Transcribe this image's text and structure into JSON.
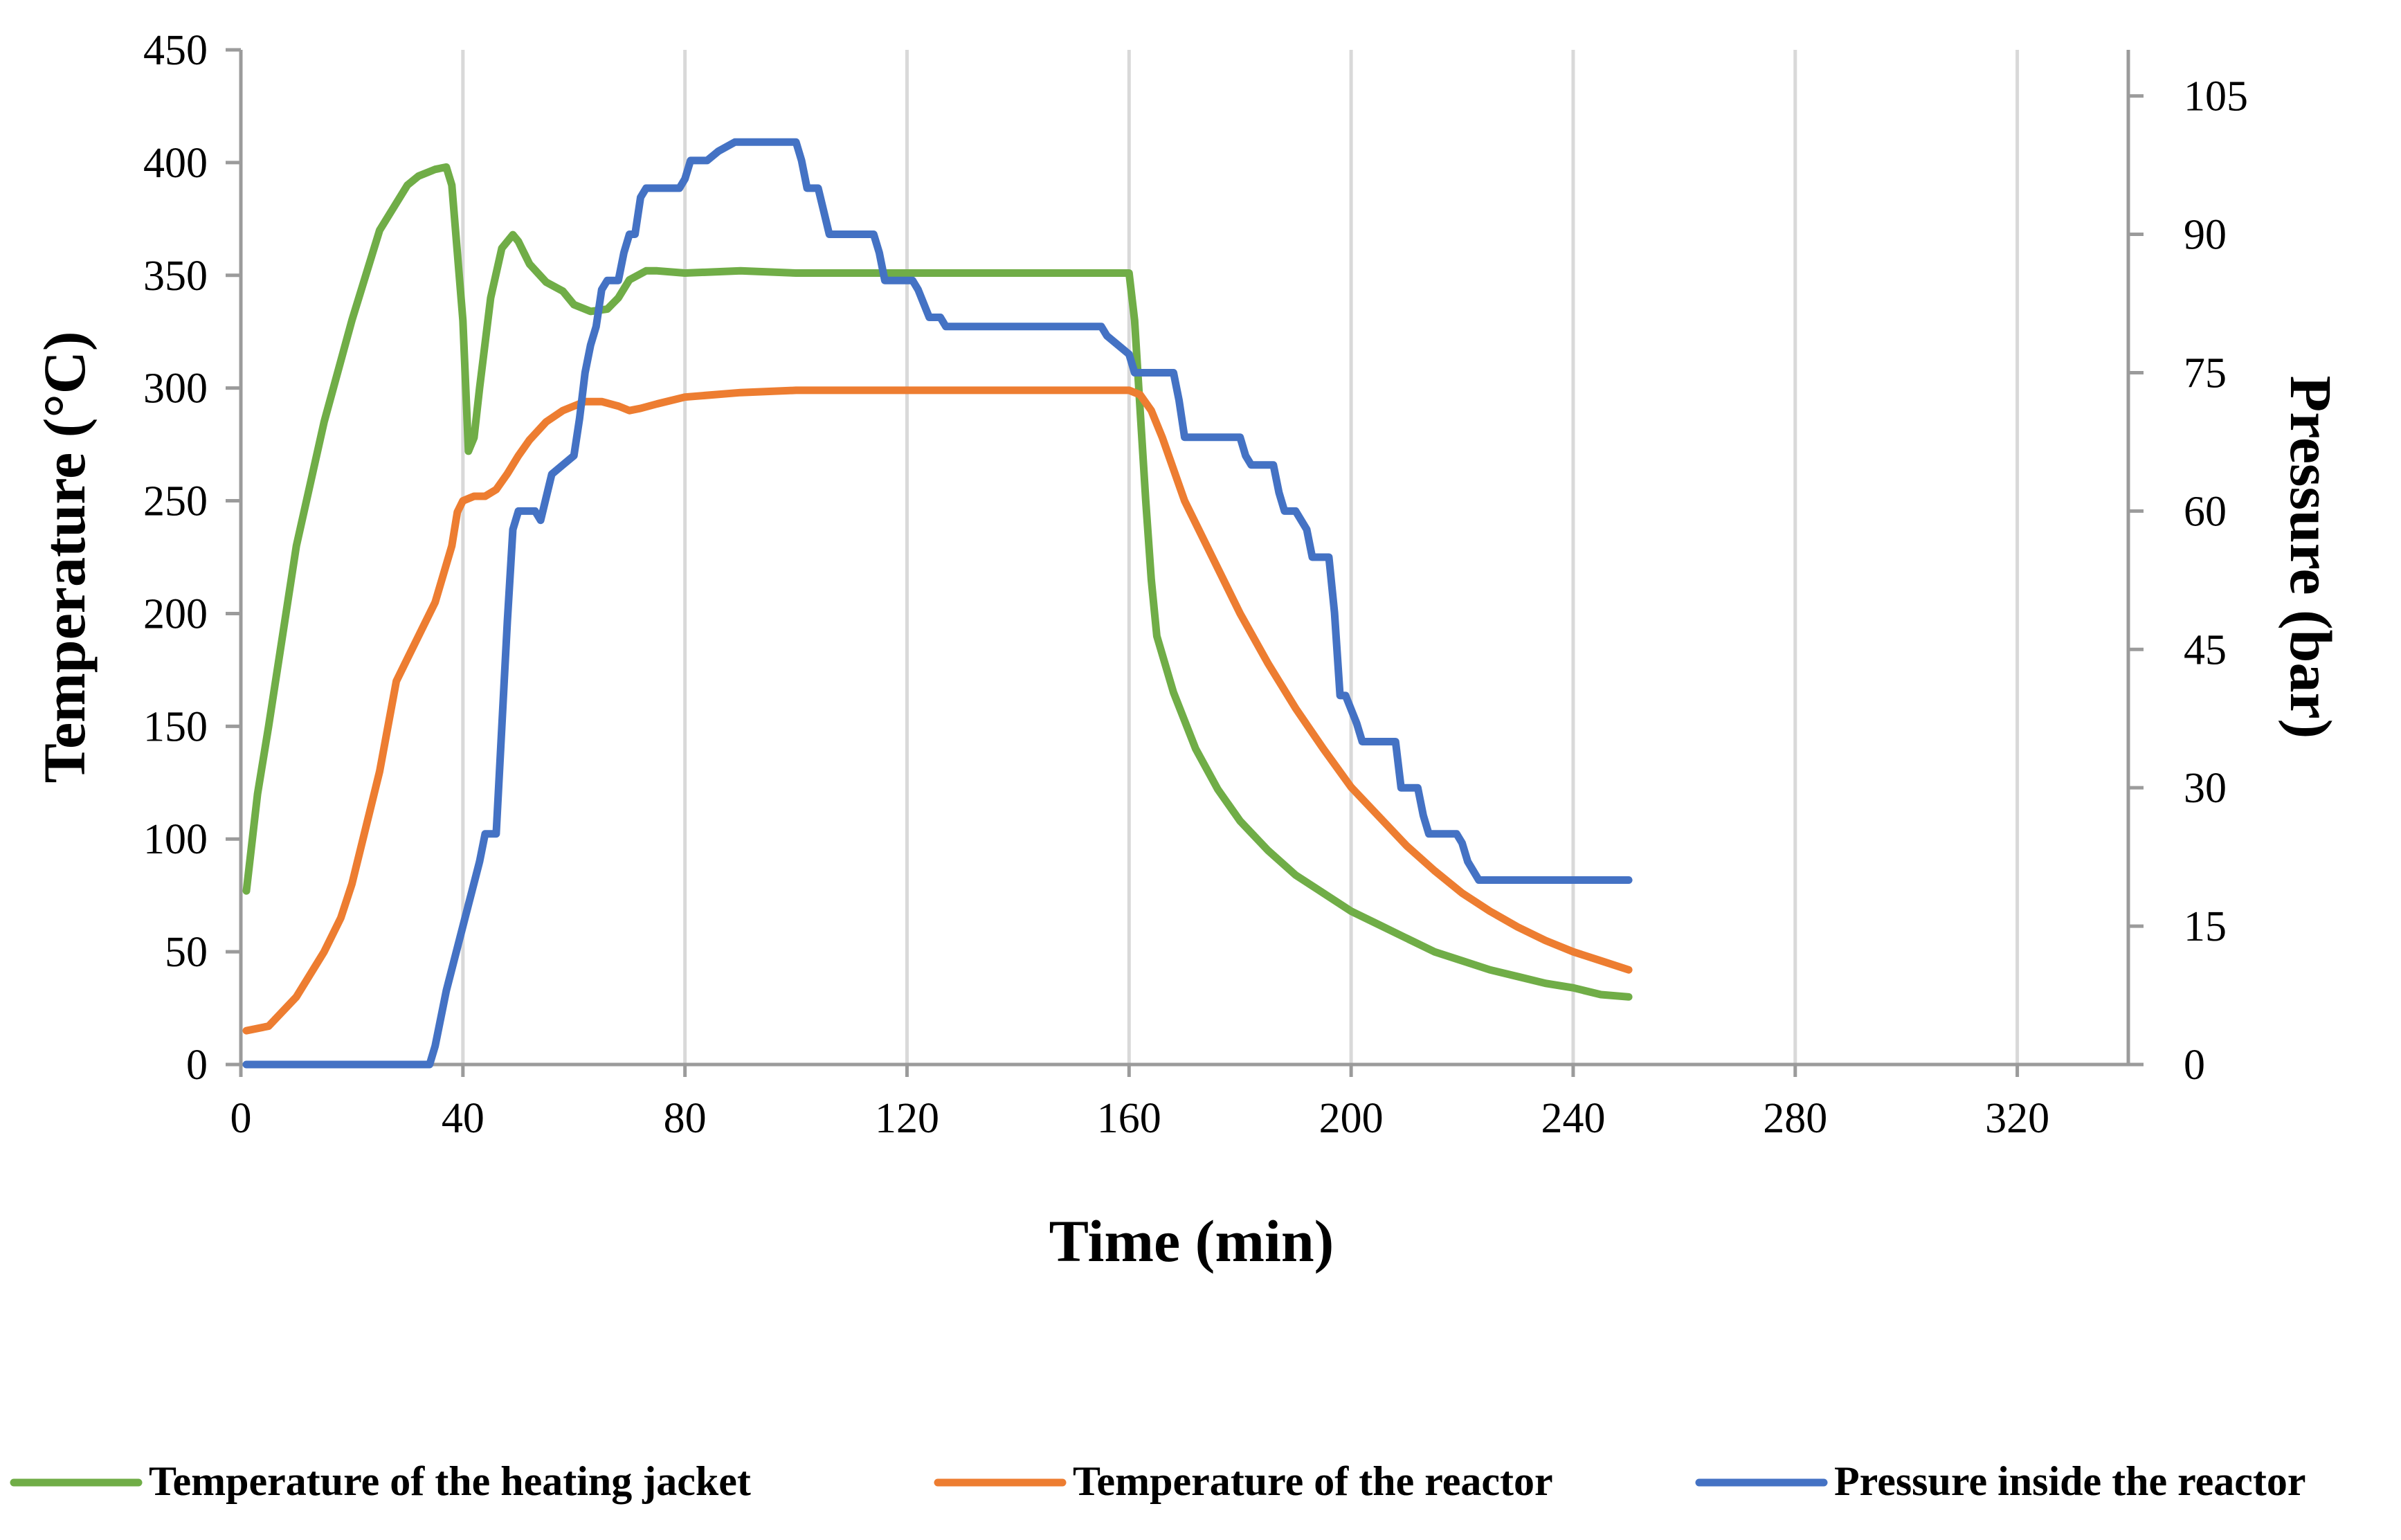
{
  "chart_data": {
    "type": "line",
    "title": "",
    "xlabel": "Time (min)",
    "ylabel": "Temperature (°C)",
    "y2label": "Pressure (bar)",
    "xlim": [
      0,
      340
    ],
    "ylim": [
      0,
      450
    ],
    "y2lim": [
      0,
      110
    ],
    "xticks": [
      "0",
      "40",
      "80",
      "120",
      "160",
      "200",
      "240",
      "280",
      "320"
    ],
    "yticks": [
      "0",
      "50",
      "100",
      "150",
      "200",
      "250",
      "300",
      "350",
      "400",
      "450"
    ],
    "y2ticks": [
      "0",
      "15",
      "30",
      "45",
      "60",
      "75",
      "90",
      "105"
    ],
    "grid": "vertical",
    "legend_position": "bottom",
    "series": [
      {
        "name": "Temperature of the heating jacket",
        "color": "#70AD47",
        "axis": "left",
        "x": [
          1,
          3,
          5,
          10,
          15,
          20,
          25,
          30,
          32,
          35,
          37,
          38,
          40,
          41,
          42,
          43,
          45,
          47,
          49,
          50,
          52,
          55,
          58,
          60,
          63,
          66,
          68,
          70,
          73,
          75,
          80,
          90,
          100,
          110,
          120,
          130,
          140,
          150,
          158,
          160,
          161,
          162,
          163,
          164,
          165,
          168,
          172,
          176,
          180,
          185,
          190,
          195,
          200,
          205,
          210,
          215,
          220,
          225,
          230,
          235,
          240,
          245,
          250
        ],
        "y": [
          77,
          120,
          150,
          230,
          285,
          330,
          370,
          390,
          394,
          397,
          398,
          390,
          330,
          272,
          278,
          300,
          340,
          362,
          368,
          365,
          355,
          347,
          343,
          337,
          334,
          335,
          340,
          348,
          352,
          352,
          351,
          352,
          351,
          351,
          351,
          351,
          351,
          351,
          351,
          351,
          330,
          290,
          250,
          215,
          190,
          165,
          140,
          122,
          108,
          95,
          84,
          76,
          68,
          62,
          56,
          50,
          46,
          42,
          39,
          36,
          34,
          31,
          30
        ]
      },
      {
        "name": "Temperature of the reactor",
        "color": "#ED7D31",
        "axis": "left",
        "x": [
          1,
          5,
          10,
          15,
          18,
          20,
          25,
          28,
          30,
          35,
          38,
          39,
          40,
          42,
          44,
          46,
          48,
          50,
          52,
          55,
          58,
          60,
          62,
          65,
          68,
          70,
          72,
          75,
          80,
          90,
          100,
          110,
          120,
          130,
          140,
          150,
          160,
          162,
          164,
          166,
          170,
          175,
          180,
          185,
          190,
          195,
          200,
          205,
          210,
          215,
          220,
          225,
          230,
          235,
          240,
          245,
          250
        ],
        "y": [
          15,
          17,
          30,
          50,
          65,
          80,
          130,
          170,
          180,
          205,
          230,
          245,
          250,
          252,
          252,
          255,
          262,
          270,
          277,
          285,
          290,
          292,
          294,
          294,
          292,
          290,
          291,
          293,
          296,
          298,
          299,
          299,
          299,
          299,
          299,
          299,
          299,
          297,
          290,
          278,
          250,
          225,
          200,
          178,
          158,
          140,
          123,
          110,
          97,
          86,
          76,
          68,
          61,
          55,
          50,
          46,
          42
        ]
      },
      {
        "name": "Pressure inside the reactor",
        "color": "#4472C4",
        "axis": "right",
        "x": [
          1,
          34,
          35,
          37,
          40,
          43,
          44,
          46,
          48,
          49,
          50,
          53,
          54,
          56,
          58,
          60,
          61,
          62,
          63,
          64,
          65,
          66,
          68,
          69,
          70,
          71,
          72,
          73,
          75,
          79,
          80,
          81,
          82,
          84,
          86,
          89,
          90,
          100,
          101,
          102,
          104,
          106,
          108,
          114,
          115,
          116,
          118,
          121,
          122,
          124,
          126,
          127,
          128,
          130,
          155,
          156,
          158,
          160,
          161,
          162,
          164,
          168,
          169,
          170,
          172,
          180,
          181,
          182,
          184,
          186,
          187,
          188,
          190,
          192,
          193,
          194,
          196,
          197,
          198,
          199,
          201,
          202,
          203,
          205,
          208,
          209,
          210,
          212,
          213,
          214,
          215,
          218,
          219,
          220,
          221,
          223,
          250
        ],
        "y": [
          0,
          0,
          2,
          8,
          15,
          22,
          25,
          25,
          48,
          58,
          60,
          60,
          59,
          64,
          65,
          66,
          70,
          75,
          78,
          80,
          84,
          85,
          85,
          88,
          90,
          90,
          94,
          95,
          95,
          95,
          96,
          98,
          98,
          98,
          99,
          100,
          100,
          100,
          98,
          95,
          95,
          90,
          90,
          90,
          88,
          85,
          85,
          85,
          84,
          81,
          81,
          80,
          80,
          80,
          80,
          79,
          78,
          77,
          75,
          75,
          75,
          75,
          72,
          68,
          68,
          68,
          66,
          65,
          65,
          65,
          62,
          60,
          60,
          58,
          55,
          55,
          55,
          49,
          40,
          40,
          37,
          35,
          35,
          35,
          35,
          30,
          30,
          30,
          27,
          25,
          25,
          25,
          25,
          24,
          22,
          20,
          20
        ]
      }
    ]
  }
}
